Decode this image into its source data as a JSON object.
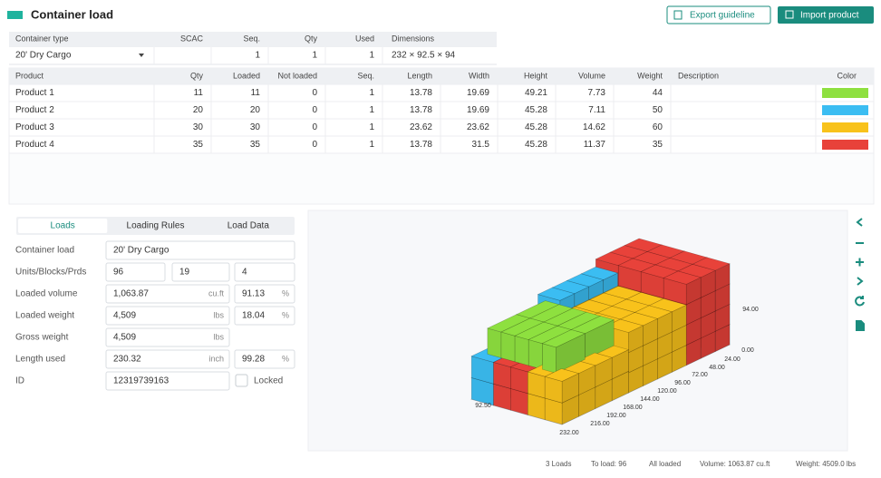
{
  "header": {
    "title": "Container load",
    "buttons": [
      "Export guideline",
      "Import product"
    ]
  },
  "container_table": {
    "columns": [
      "Container type",
      "SCAC",
      "Seq.",
      "Qty",
      "Used",
      "Dimensions"
    ],
    "row": {
      "container_type": "20' Dry Cargo",
      "seq": 1,
      "qty": 1,
      "used": 1,
      "dimensions": "232 × 92.5 × 94"
    }
  },
  "products_table": {
    "columns": [
      "Product",
      "Qty",
      "Loaded",
      "Not loaded",
      "Seq.",
      "Length",
      "Width",
      "Height",
      "Volume",
      "Weight",
      "Description",
      "Color"
    ],
    "rows": [
      {
        "product": "Product 1",
        "qty": 11,
        "loaded": 11,
        "not_loaded": 0,
        "seq": 1,
        "length": 13.78,
        "width": 19.69,
        "height": 49.21,
        "volume": 7.73,
        "weight": 44,
        "color": "#8ee03f"
      },
      {
        "product": "Product 2",
        "qty": 20,
        "loaded": 20,
        "not_loaded": 0,
        "seq": 1,
        "length": 13.78,
        "width": 19.69,
        "height": 45.28,
        "volume": 7.11,
        "weight": 50,
        "color": "#3bbdf2"
      },
      {
        "product": "Product 3",
        "qty": 30,
        "loaded": 30,
        "not_loaded": 0,
        "seq": 1,
        "length": 23.62,
        "width": 23.62,
        "height": 45.28,
        "volume": 14.62,
        "weight": 60,
        "color": "#f8c21b"
      },
      {
        "product": "Product 4",
        "qty": 35,
        "loaded": 35,
        "not_loaded": 0,
        "seq": 1,
        "length": 13.78,
        "width": 31.5,
        "height": 45.28,
        "volume": 11.37,
        "weight": 35,
        "color": "#e8423a"
      }
    ]
  },
  "load_panel": {
    "tabs": [
      "Loads",
      "Loading Rules",
      "Load Data"
    ],
    "active_tab": 0,
    "fields": [
      {
        "label": "Container load",
        "inputs": [
          {
            "value": "20' Dry Cargo"
          }
        ]
      },
      {
        "label": "Units/Blocks/Prds",
        "inputs": [
          {
            "value": 96
          },
          {
            "value": 19
          },
          {
            "value": 4
          }
        ]
      },
      {
        "label": "Loaded volume",
        "inputs": [
          {
            "value": "1,063.87",
            "unit": "cu.ft"
          },
          {
            "value": 91.13,
            "unit": "%"
          }
        ]
      },
      {
        "label": "Loaded weight",
        "inputs": [
          {
            "value": "4,509",
            "unit": "lbs"
          },
          {
            "value": 18.04,
            "unit": "%"
          }
        ]
      },
      {
        "label": "Gross weight",
        "inputs": [
          {
            "value": "4,509",
            "unit": "lbs"
          }
        ]
      },
      {
        "label": "Length used",
        "inputs": [
          {
            "value": 230.32,
            "unit": "inch"
          },
          {
            "value": 99.28,
            "unit": "%"
          }
        ]
      },
      {
        "label": "ID",
        "inputs": [
          {
            "value": "12319739163"
          }
        ],
        "checkbox": "Locked"
      }
    ]
  },
  "viewer": {
    "axis_labels": [
      "94.00",
      "0.00",
      "24.00",
      "48.00",
      "72.00",
      "96.00",
      "120.00",
      "144.00",
      "168.00",
      "192.00",
      "216.00",
      "232.00",
      "92.50"
    ]
  },
  "status_bar": [
    "3 Loads",
    "To load: 96",
    "All loaded",
    "Volume: 1063.87 cu.ft",
    "Weight: 4509.0 lbs"
  ]
}
